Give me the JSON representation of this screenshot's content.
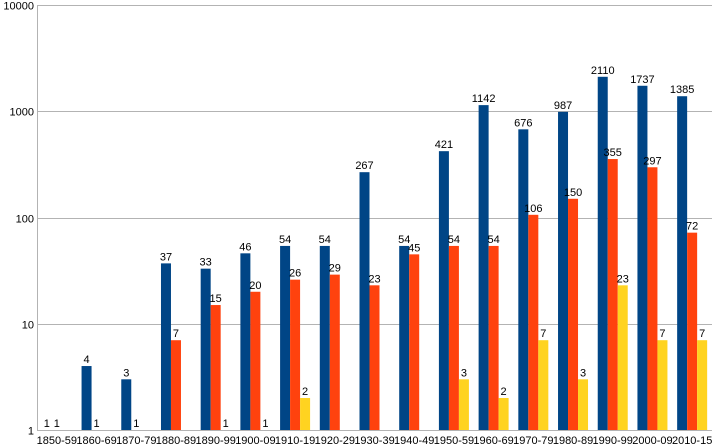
{
  "chart_data": {
    "type": "bar",
    "log_scale": true,
    "ylim": [
      1,
      10000
    ],
    "grid": true,
    "y_ticks": [
      1,
      10,
      100,
      1000,
      10000
    ],
    "categories": [
      "1850-59",
      "1860-69",
      "1870-79",
      "1880-89",
      "1890-99",
      "1900-09",
      "1910-19",
      "1920-29",
      "1930-39",
      "1940-49",
      "1950-59",
      "1960-69",
      "1970-79",
      "1980-89",
      "1990-99",
      "2000-09",
      "2010-15"
    ],
    "series": [
      {
        "color": "#004586",
        "values": [
          1,
          4,
          3,
          37,
          33,
          46,
          54,
          54,
          267,
          54,
          421,
          1142,
          676,
          987,
          2110,
          1737,
          1385
        ]
      },
      {
        "color": "#ff420e",
        "values": [
          1,
          1,
          1,
          7,
          15,
          20,
          26,
          29,
          23,
          45,
          54,
          54,
          106,
          150,
          355,
          297,
          72
        ]
      },
      {
        "color": "#ffd320",
        "values": [
          null,
          null,
          null,
          null,
          1,
          1,
          2,
          null,
          null,
          null,
          3,
          2,
          7,
          3,
          23,
          7,
          7
        ]
      }
    ]
  }
}
